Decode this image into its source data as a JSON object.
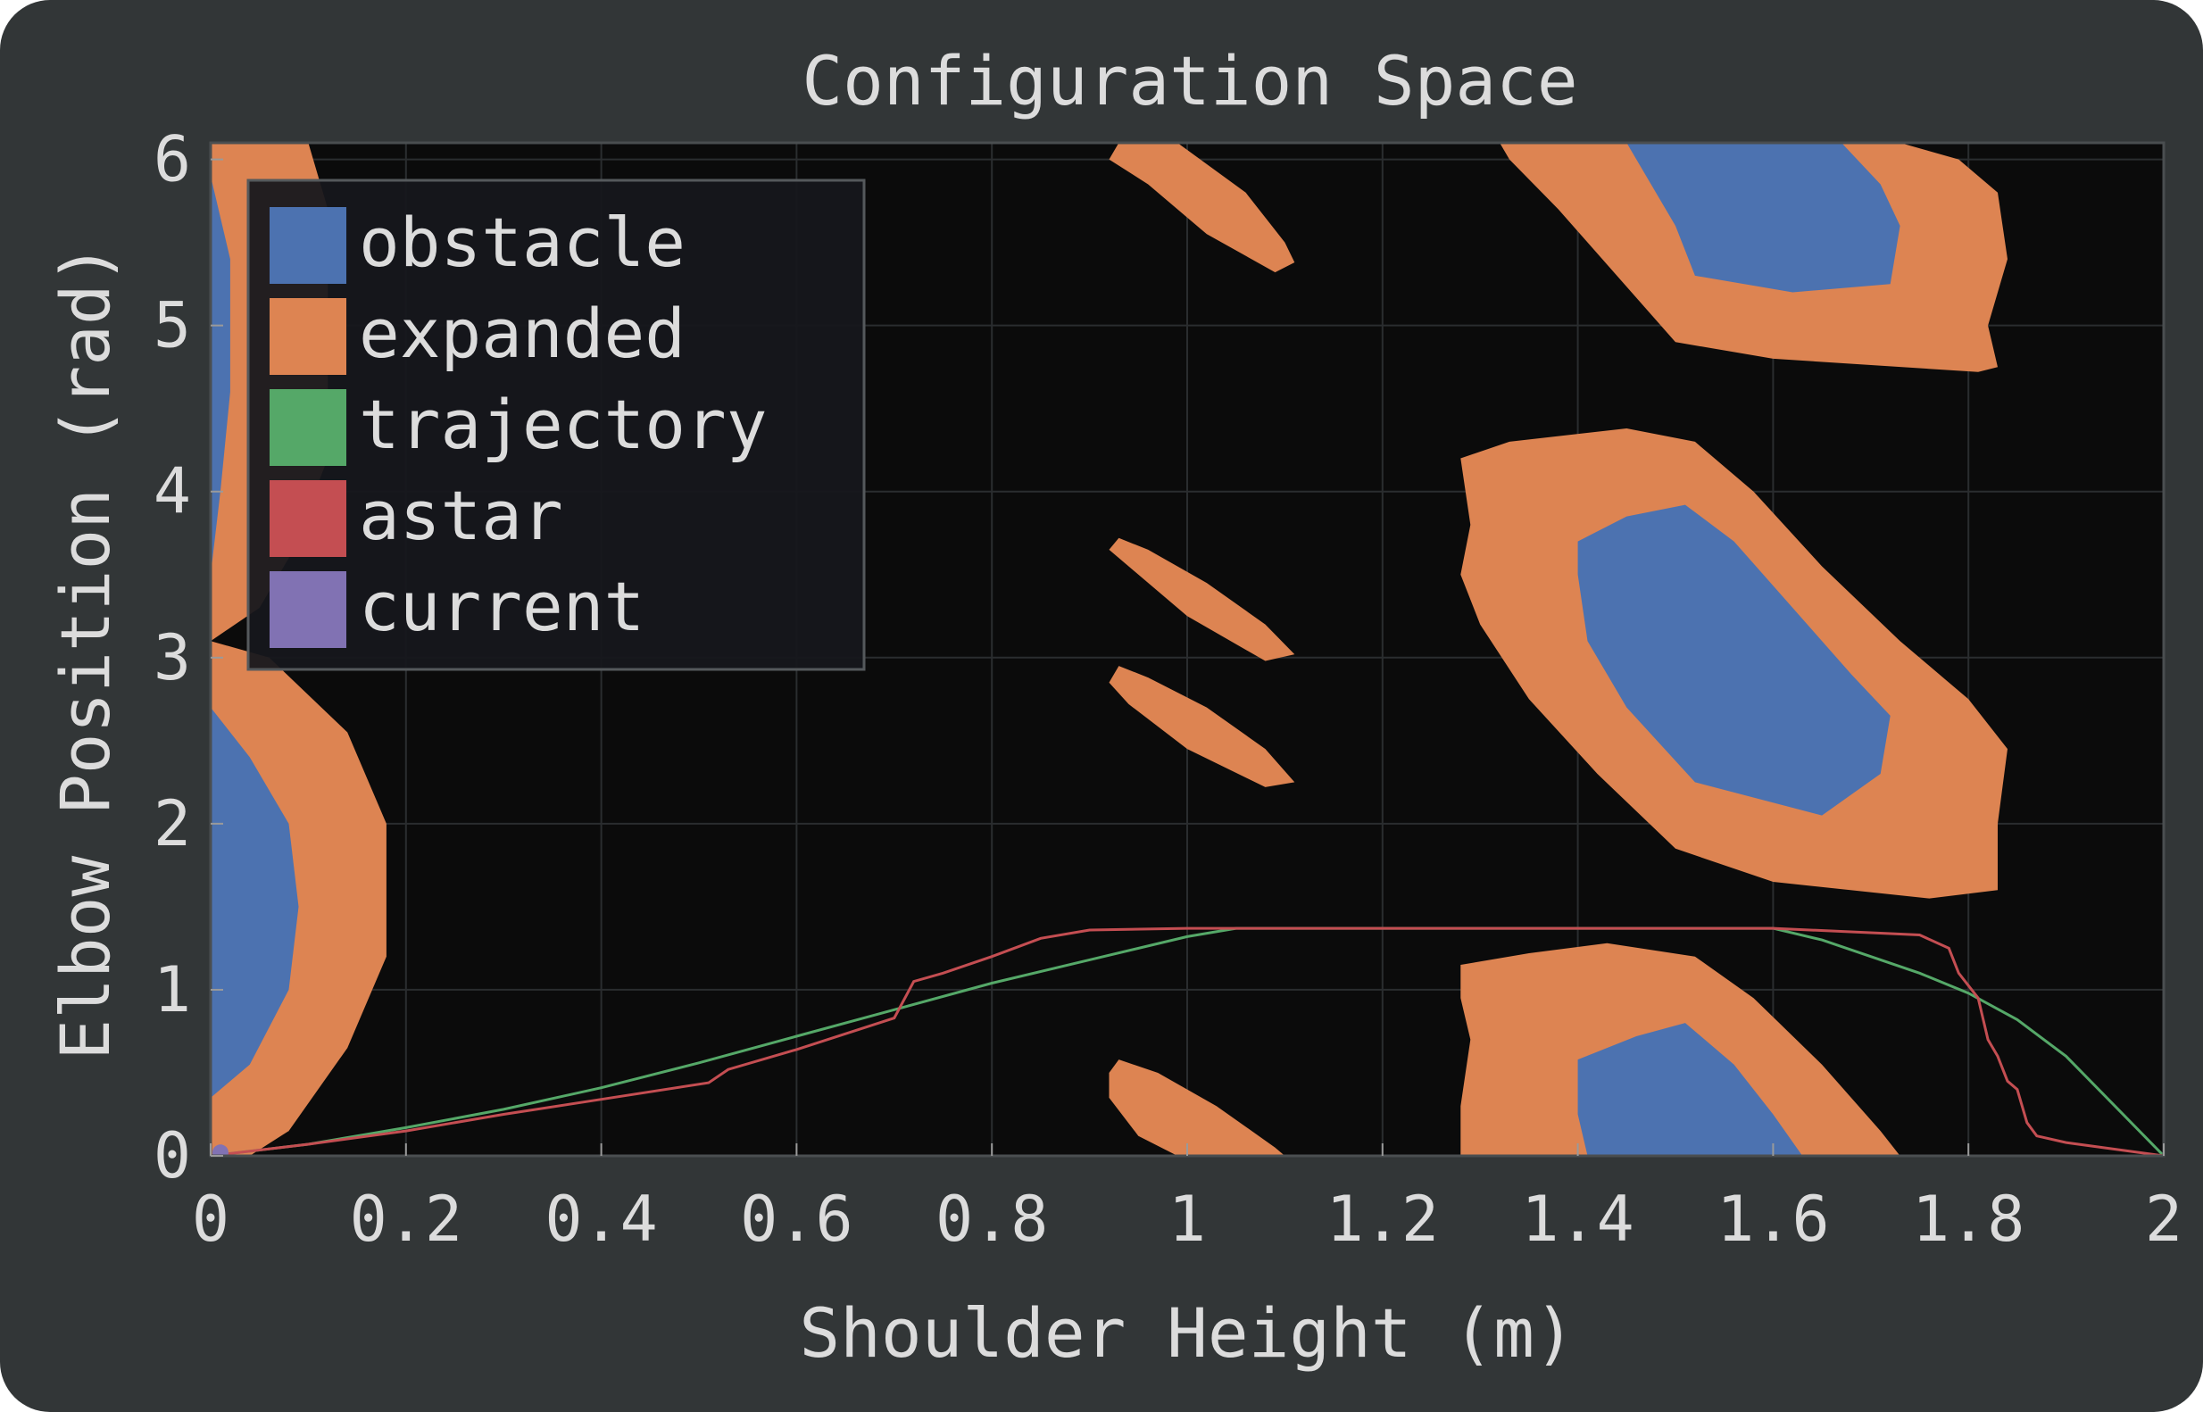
{
  "chart_data": {
    "type": "area",
    "title": "Configuration Space",
    "xlabel": "Shoulder Height (m)",
    "ylabel": "Elbow Position (rad)",
    "xlim": [
      0,
      2
    ],
    "ylim": [
      0,
      6.1
    ],
    "x_ticks": [
      0,
      0.2,
      0.4,
      0.6,
      0.8,
      1,
      1.2,
      1.4,
      1.6,
      1.8,
      2
    ],
    "x_tick_labels": [
      "0",
      "0.2",
      "0.4",
      "0.6",
      "0.8",
      "1",
      "1.2",
      "1.4",
      "1.6",
      "1.8",
      "2"
    ],
    "y_ticks": [
      0,
      1,
      2,
      3,
      4,
      5,
      6
    ],
    "y_tick_labels": [
      "0",
      "1",
      "2",
      "3",
      "4",
      "5",
      "6"
    ],
    "grid": true,
    "legend_position": "top-left",
    "background": "#0b0b0b",
    "legend": [
      {
        "name": "obstacle",
        "color": "#4c72b0"
      },
      {
        "name": "expanded",
        "color": "#dd8452"
      },
      {
        "name": "trajectory",
        "color": "#55a868"
      },
      {
        "name": "astar",
        "color": "#c44e52"
      },
      {
        "name": "current",
        "color": "#8172b3"
      }
    ],
    "expanded_regions": [
      [
        [
          0,
          6.1
        ],
        [
          0.1,
          6.1
        ],
        [
          0.12,
          5.7
        ],
        [
          0.12,
          4.2
        ],
        [
          0.08,
          3.6
        ],
        [
          0.05,
          3.3
        ],
        [
          0,
          3.1
        ]
      ],
      [
        [
          0,
          3.1
        ],
        [
          0.06,
          3.0
        ],
        [
          0.14,
          2.55
        ],
        [
          0.18,
          2.0
        ],
        [
          0.18,
          1.2
        ],
        [
          0.14,
          0.65
        ],
        [
          0.08,
          0.15
        ],
        [
          0.04,
          0
        ],
        [
          0,
          0
        ]
      ],
      [
        [
          0.93,
          6.1
        ],
        [
          0.99,
          6.1
        ],
        [
          1.06,
          5.8
        ],
        [
          1.1,
          5.5
        ],
        [
          1.11,
          5.38
        ],
        [
          1.09,
          5.32
        ],
        [
          1.02,
          5.55
        ],
        [
          0.96,
          5.85
        ],
        [
          0.92,
          6.0
        ]
      ],
      [
        [
          0.93,
          3.72
        ],
        [
          0.96,
          3.65
        ],
        [
          1.02,
          3.45
        ],
        [
          1.08,
          3.2
        ],
        [
          1.11,
          3.02
        ],
        [
          1.08,
          2.98
        ],
        [
          1.0,
          3.25
        ],
        [
          0.94,
          3.55
        ],
        [
          0.92,
          3.65
        ]
      ],
      [
        [
          0.93,
          2.95
        ],
        [
          0.96,
          2.88
        ],
        [
          1.02,
          2.7
        ],
        [
          1.08,
          2.45
        ],
        [
          1.11,
          2.25
        ],
        [
          1.08,
          2.22
        ],
        [
          1.0,
          2.45
        ],
        [
          0.94,
          2.72
        ],
        [
          0.92,
          2.85
        ]
      ],
      [
        [
          0.93,
          0.58
        ],
        [
          0.97,
          0.5
        ],
        [
          1.03,
          0.3
        ],
        [
          1.09,
          0.05
        ],
        [
          1.1,
          0
        ],
        [
          0.99,
          0
        ],
        [
          0.95,
          0.12
        ],
        [
          0.92,
          0.35
        ],
        [
          0.92,
          0.5
        ]
      ],
      [
        [
          1.32,
          6.1
        ],
        [
          1.73,
          6.1
        ],
        [
          1.79,
          6.0
        ],
        [
          1.83,
          5.8
        ],
        [
          1.84,
          5.4
        ],
        [
          1.82,
          5.0
        ],
        [
          1.83,
          4.75
        ],
        [
          1.81,
          4.72
        ],
        [
          1.6,
          4.8
        ],
        [
          1.5,
          4.9
        ],
        [
          1.44,
          5.3
        ],
        [
          1.38,
          5.7
        ],
        [
          1.33,
          6.0
        ]
      ],
      [
        [
          1.28,
          4.2
        ],
        [
          1.33,
          4.3
        ],
        [
          1.45,
          4.38
        ],
        [
          1.52,
          4.3
        ],
        [
          1.58,
          4.0
        ],
        [
          1.65,
          3.55
        ],
        [
          1.73,
          3.1
        ],
        [
          1.8,
          2.75
        ],
        [
          1.84,
          2.45
        ],
        [
          1.83,
          2.0
        ],
        [
          1.83,
          1.6
        ],
        [
          1.76,
          1.55
        ],
        [
          1.6,
          1.65
        ],
        [
          1.5,
          1.85
        ],
        [
          1.42,
          2.3
        ],
        [
          1.35,
          2.75
        ],
        [
          1.3,
          3.2
        ],
        [
          1.28,
          3.5
        ],
        [
          1.29,
          3.8
        ]
      ],
      [
        [
          1.28,
          1.15
        ],
        [
          1.35,
          1.22
        ],
        [
          1.43,
          1.28
        ],
        [
          1.52,
          1.2
        ],
        [
          1.58,
          0.95
        ],
        [
          1.65,
          0.55
        ],
        [
          1.71,
          0.15
        ],
        [
          1.73,
          0
        ],
        [
          1.28,
          0
        ],
        [
          1.28,
          0.3
        ],
        [
          1.29,
          0.7
        ],
        [
          1.28,
          0.95
        ]
      ]
    ],
    "obstacle_regions": [
      [
        [
          0,
          5.9
        ],
        [
          0.02,
          5.4
        ],
        [
          0.02,
          4.6
        ],
        [
          0.01,
          4.0
        ],
        [
          0,
          3.5
        ]
      ],
      [
        [
          0,
          2.7
        ],
        [
          0.04,
          2.4
        ],
        [
          0.08,
          2.0
        ],
        [
          0.09,
          1.5
        ],
        [
          0.08,
          1.0
        ],
        [
          0.04,
          0.55
        ],
        [
          0,
          0.35
        ]
      ],
      [
        [
          1.45,
          6.1
        ],
        [
          1.67,
          6.1
        ],
        [
          1.71,
          5.85
        ],
        [
          1.73,
          5.6
        ],
        [
          1.72,
          5.25
        ],
        [
          1.62,
          5.2
        ],
        [
          1.52,
          5.3
        ],
        [
          1.5,
          5.6
        ],
        [
          1.47,
          5.9
        ]
      ],
      [
        [
          1.4,
          3.7
        ],
        [
          1.45,
          3.85
        ],
        [
          1.51,
          3.92
        ],
        [
          1.56,
          3.7
        ],
        [
          1.62,
          3.3
        ],
        [
          1.68,
          2.9
        ],
        [
          1.72,
          2.65
        ],
        [
          1.71,
          2.3
        ],
        [
          1.65,
          2.05
        ],
        [
          1.52,
          2.25
        ],
        [
          1.45,
          2.7
        ],
        [
          1.41,
          3.1
        ],
        [
          1.4,
          3.5
        ]
      ],
      [
        [
          1.4,
          0.58
        ],
        [
          1.46,
          0.72
        ],
        [
          1.51,
          0.8
        ],
        [
          1.56,
          0.55
        ],
        [
          1.6,
          0.25
        ],
        [
          1.63,
          0
        ],
        [
          1.41,
          0
        ],
        [
          1.4,
          0.25
        ]
      ]
    ],
    "series": [
      {
        "name": "trajectory",
        "color": "#55a868",
        "x": [
          0,
          0.1,
          0.2,
          0.3,
          0.4,
          0.5,
          0.6,
          0.7,
          0.8,
          0.9,
          1.0,
          1.05,
          1.6,
          1.65,
          1.7,
          1.75,
          1.8,
          1.85,
          1.9,
          1.95,
          2.0
        ],
        "y": [
          0,
          0.07,
          0.17,
          0.28,
          0.41,
          0.56,
          0.72,
          0.88,
          1.04,
          1.18,
          1.32,
          1.37,
          1.37,
          1.3,
          1.2,
          1.1,
          0.98,
          0.82,
          0.6,
          0.3,
          0
        ]
      },
      {
        "name": "astar",
        "color": "#c44e52",
        "x": [
          0,
          0.1,
          0.2,
          0.3,
          0.4,
          0.51,
          0.53,
          0.6,
          0.7,
          0.72,
          0.75,
          0.8,
          0.85,
          0.9,
          1.0,
          1.6,
          1.75,
          1.78,
          1.79,
          1.81,
          1.82,
          1.83,
          1.84,
          1.85,
          1.86,
          1.87,
          1.9,
          2.0
        ],
        "y": [
          0,
          0.07,
          0.15,
          0.25,
          0.34,
          0.44,
          0.52,
          0.64,
          0.83,
          1.05,
          1.1,
          1.2,
          1.31,
          1.36,
          1.37,
          1.37,
          1.33,
          1.25,
          1.1,
          0.95,
          0.7,
          0.6,
          0.45,
          0.4,
          0.2,
          0.12,
          0.08,
          0
        ]
      }
    ],
    "current": {
      "x": 0.01,
      "y": 0.02
    }
  }
}
